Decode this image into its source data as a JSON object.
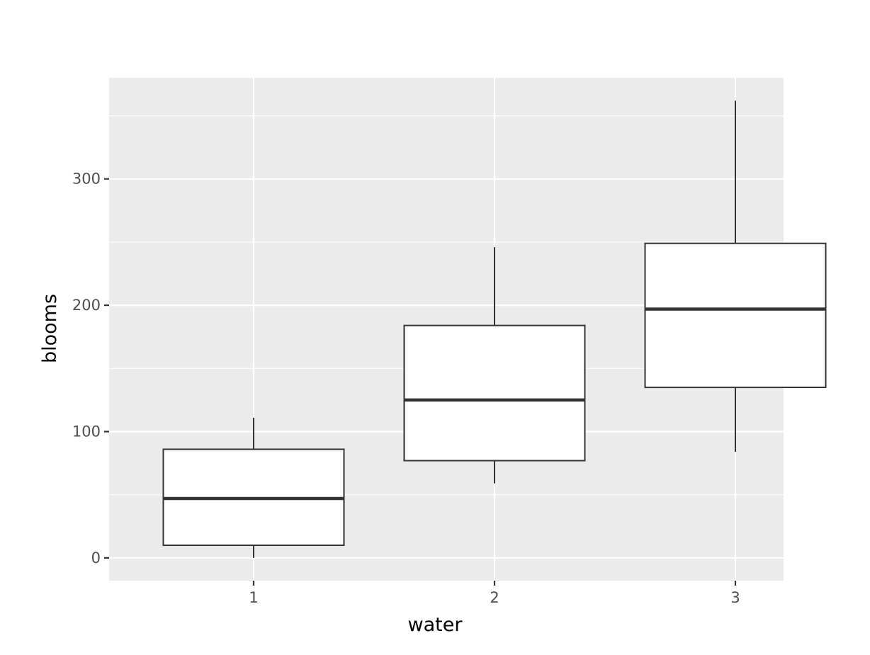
{
  "chart_data": {
    "type": "boxplot",
    "title": "",
    "xlabel": "water",
    "ylabel": "blooms",
    "categories": [
      "1",
      "2",
      "3"
    ],
    "ylim": [
      -18,
      380
    ],
    "y_ticks": [
      0,
      100,
      200,
      300
    ],
    "y_tick_labels": [
      "0",
      "100",
      "200",
      "300"
    ],
    "grid": true,
    "legend": "none",
    "boxes": [
      {
        "category": "1",
        "whisker_low": 0,
        "q1": 10,
        "median": 47,
        "q3": 86,
        "whisker_high": 111
      },
      {
        "category": "2",
        "whisker_low": 59,
        "q1": 77,
        "median": 125,
        "q3": 184,
        "whisker_high": 246
      },
      {
        "category": "3",
        "whisker_low": 84,
        "q1": 135,
        "median": 197,
        "q3": 249,
        "whisker_high": 362
      }
    ],
    "colors": {
      "panel": "#ebebeb",
      "grid": "#ffffff",
      "box_fill": "#ffffff",
      "box_stroke": "#333333",
      "tick_text": "#4d4d4d",
      "tick_mark": "#333333",
      "axis_title": "#000000"
    }
  }
}
